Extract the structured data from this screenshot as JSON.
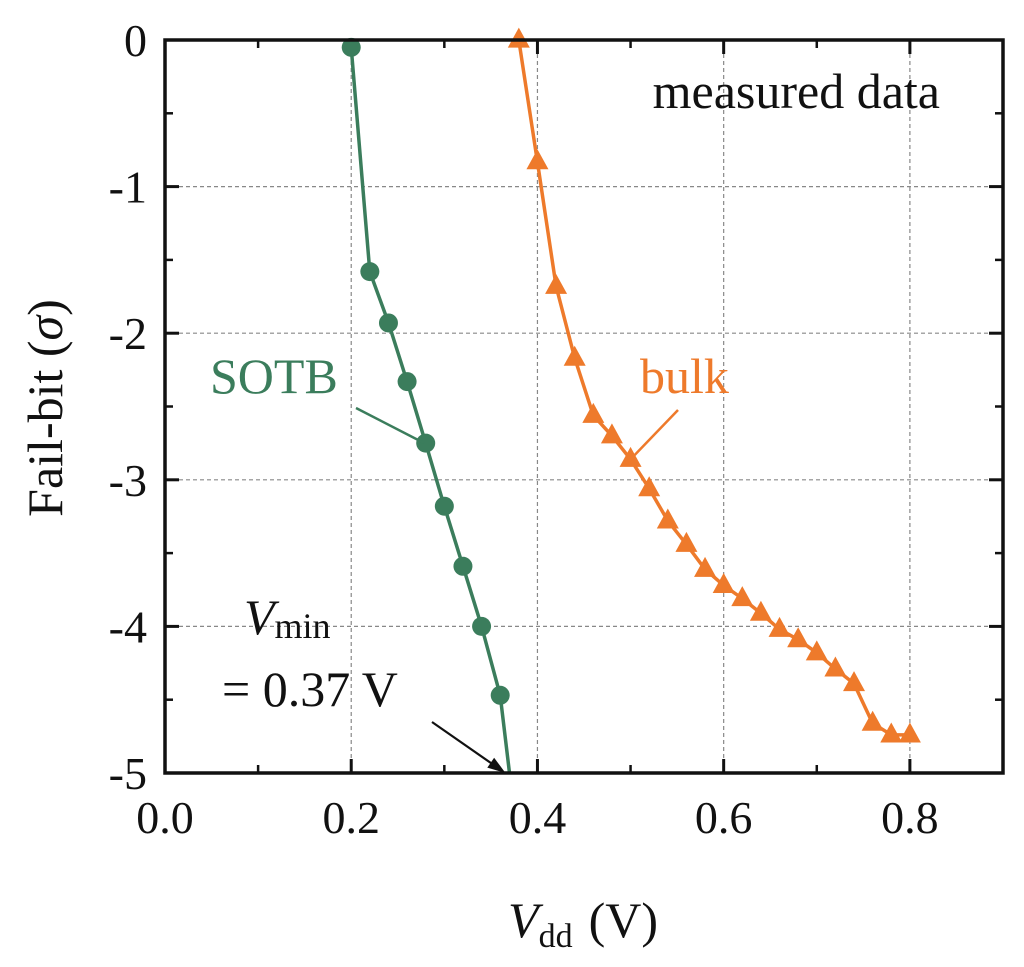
{
  "chart_data": {
    "type": "line",
    "annotation_title": "measured data",
    "xlabel": {
      "symbol": "V",
      "subscript": "dd",
      "unit": "(V)"
    },
    "ylabel": {
      "prefix": "Fail-bit (",
      "symbol": "σ",
      "suffix": ")"
    },
    "xlim": [
      0.0,
      0.9
    ],
    "ylim": [
      -5,
      0
    ],
    "xticks": [
      0.0,
      0.2,
      0.4,
      0.6,
      0.8
    ],
    "xtick_labels": [
      "0.0",
      "0.2",
      "0.4",
      "0.6",
      "0.8"
    ],
    "yticks": [
      0,
      -1,
      -2,
      -3,
      -4,
      -5
    ],
    "ytick_labels": [
      "0",
      "-1",
      "-2",
      "-3",
      "-4",
      "-5"
    ],
    "grid": true,
    "series": [
      {
        "name": "SOTB",
        "color": "#3b7d5c",
        "marker": "circle",
        "x": [
          0.2,
          0.22,
          0.24,
          0.26,
          0.28,
          0.3,
          0.32,
          0.34,
          0.36
        ],
        "y": [
          -0.05,
          -1.58,
          -1.93,
          -2.33,
          -2.75,
          -3.18,
          -3.59,
          -4.0,
          -4.47
        ],
        "line_end": [
          0.37,
          -5.0
        ]
      },
      {
        "name": "bulk",
        "color": "#ee7a2b",
        "marker": "triangle",
        "x": [
          0.38,
          0.4,
          0.42,
          0.44,
          0.46,
          0.48,
          0.5,
          0.52,
          0.54,
          0.56,
          0.58,
          0.6,
          0.62,
          0.64,
          0.66,
          0.68,
          0.7,
          0.72,
          0.74,
          0.76,
          0.78,
          0.8
        ],
        "y": [
          0.0,
          -0.83,
          -1.68,
          -2.17,
          -2.56,
          -2.7,
          -2.86,
          -3.06,
          -3.28,
          -3.44,
          -3.61,
          -3.72,
          -3.81,
          -3.91,
          -4.02,
          -4.09,
          -4.18,
          -4.29,
          -4.39,
          -4.66,
          -4.74,
          -4.74
        ]
      }
    ],
    "vmin_annotation": {
      "symbol": "V",
      "subscript": "min",
      "value_text": "= 0.37 V",
      "x": 0.37,
      "y": -5.0
    }
  }
}
